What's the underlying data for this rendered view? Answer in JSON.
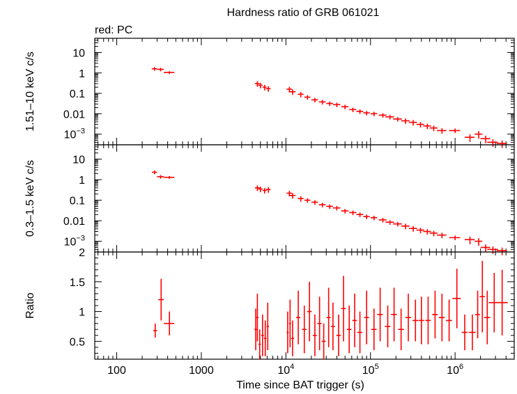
{
  "title": "Hardness ratio of GRB 061021",
  "subtitle": "red: PC",
  "colors": {
    "series": "#ff0000",
    "axes": "#000000"
  },
  "chart_data": [
    {
      "type": "scatter",
      "panel": "hard",
      "ylabel": "1.51–10 keV c/s",
      "yscale": "log",
      "ylim": [
        0.0003,
        50
      ],
      "ytick_labels": [
        "10",
        "1",
        "0.1",
        "0.01",
        "10^-3"
      ],
      "xscale": "log",
      "xlim": [
        55,
        5000000
      ],
      "grid": false,
      "series": [
        {
          "x": [
            280,
            330,
            420,
            4600,
            5000,
            5600,
            6200,
            11000,
            12000,
            15000,
            18000,
            22000,
            27000,
            33000,
            40000,
            50000,
            62000,
            75000,
            90000,
            110000,
            140000,
            170000,
            210000,
            260000,
            320000,
            390000,
            470000,
            560000,
            700000,
            1000000,
            1500000,
            1900000,
            2300000,
            2800000,
            3600000
          ],
          "xerr": [
            20,
            30,
            60,
            300,
            300,
            300,
            400,
            800,
            1000,
            1200,
            1500,
            2000,
            2500,
            3000,
            4000,
            5000,
            6000,
            7000,
            8000,
            10000,
            15000,
            20000,
            25000,
            30000,
            35000,
            40000,
            50000,
            60000,
            90000,
            150000,
            200000,
            200000,
            300000,
            400000,
            500000
          ],
          "y": [
            1.6,
            1.5,
            1.05,
            0.3,
            0.25,
            0.2,
            0.17,
            0.16,
            0.12,
            0.09,
            0.065,
            0.048,
            0.038,
            0.032,
            0.028,
            0.022,
            0.016,
            0.013,
            0.011,
            0.01,
            0.0085,
            0.007,
            0.0055,
            0.0045,
            0.0038,
            0.003,
            0.0025,
            0.002,
            0.0015,
            0.0015,
            0.0007,
            0.001,
            0.0006,
            0.0004,
            0.00035
          ],
          "yerr_rel": [
            0.2,
            0.2,
            0.15,
            0.3,
            0.3,
            0.3,
            0.3,
            0.3,
            0.3,
            0.3,
            0.25,
            0.25,
            0.25,
            0.25,
            0.25,
            0.25,
            0.25,
            0.25,
            0.25,
            0.25,
            0.25,
            0.25,
            0.25,
            0.3,
            0.3,
            0.3,
            0.3,
            0.3,
            0.3,
            0.25,
            0.4,
            0.4,
            0.4,
            0.4,
            0.4
          ]
        }
      ]
    },
    {
      "type": "scatter",
      "panel": "soft",
      "ylabel": "0.3–1.5 keV c/s",
      "yscale": "log",
      "ylim": [
        0.0003,
        50
      ],
      "ytick_labels": [
        "10",
        "1",
        "0.1",
        "0.01",
        "10^-3"
      ],
      "xscale": "log",
      "xlim": [
        55,
        5000000
      ],
      "grid": false,
      "series": [
        {
          "x": [
            280,
            330,
            420,
            4600,
            5000,
            5600,
            6200,
            11000,
            12000,
            15000,
            18000,
            22000,
            27000,
            33000,
            40000,
            50000,
            62000,
            75000,
            90000,
            110000,
            140000,
            170000,
            210000,
            260000,
            320000,
            390000,
            470000,
            560000,
            700000,
            1000000,
            1500000,
            1900000,
            2300000,
            2800000,
            3600000
          ],
          "xerr": [
            20,
            30,
            60,
            300,
            300,
            300,
            400,
            800,
            1000,
            1200,
            1500,
            2000,
            2500,
            3000,
            4000,
            5000,
            6000,
            7000,
            8000,
            10000,
            15000,
            20000,
            25000,
            30000,
            35000,
            40000,
            50000,
            60000,
            90000,
            150000,
            200000,
            200000,
            300000,
            400000,
            500000
          ],
          "y": [
            2.3,
            1.4,
            1.3,
            0.4,
            0.35,
            0.3,
            0.33,
            0.22,
            0.17,
            0.12,
            0.1,
            0.08,
            0.06,
            0.05,
            0.042,
            0.03,
            0.025,
            0.02,
            0.016,
            0.014,
            0.011,
            0.0085,
            0.007,
            0.0055,
            0.0042,
            0.0035,
            0.003,
            0.0025,
            0.002,
            0.0015,
            0.0012,
            0.001,
            0.0005,
            0.0004,
            0.00035
          ],
          "yerr_rel": [
            0.2,
            0.2,
            0.15,
            0.3,
            0.3,
            0.3,
            0.3,
            0.3,
            0.3,
            0.3,
            0.25,
            0.25,
            0.25,
            0.25,
            0.25,
            0.25,
            0.25,
            0.25,
            0.25,
            0.25,
            0.25,
            0.25,
            0.25,
            0.3,
            0.3,
            0.3,
            0.3,
            0.3,
            0.3,
            0.25,
            0.4,
            0.4,
            0.4,
            0.4,
            0.4
          ]
        }
      ]
    },
    {
      "type": "scatter",
      "panel": "ratio",
      "ylabel": "Ratio",
      "yscale": "linear",
      "ylim": [
        0.2,
        2.0
      ],
      "ytick_labels": [
        "2",
        "1.5",
        "1",
        "0.5"
      ],
      "xlabel": "Time since BAT trigger (s)",
      "xscale": "log",
      "xlim": [
        55,
        5000000
      ],
      "xtick_labels": [
        "100",
        "1000",
        "10^4",
        "10^5",
        "10^6"
      ],
      "grid": false,
      "series": [
        {
          "x": [
            285,
            335,
            420,
            4400,
            4600,
            4900,
            5300,
            5700,
            6100,
            10500,
            11200,
            12000,
            14000,
            16500,
            19000,
            22000,
            25000,
            28000,
            32000,
            36000,
            42000,
            48000,
            56000,
            65000,
            75000,
            90000,
            110000,
            130000,
            160000,
            190000,
            230000,
            280000,
            340000,
            400000,
            480000,
            580000,
            700000,
            850000,
            1050000,
            1300000,
            1600000,
            1850000,
            2100000,
            2400000,
            2900000,
            3600000
          ],
          "xerr": [
            15,
            25,
            60,
            150,
            150,
            150,
            200,
            200,
            200,
            300,
            300,
            500,
            800,
            1000,
            1200,
            1200,
            1400,
            1500,
            1800,
            2000,
            2500,
            3000,
            3500,
            4000,
            5000,
            6000,
            8000,
            10000,
            12000,
            15000,
            18000,
            22000,
            26000,
            30000,
            35000,
            45000,
            55000,
            70000,
            120000,
            100000,
            150000,
            120000,
            150000,
            200000,
            400000,
            600000
          ],
          "y": [
            0.68,
            1.2,
            0.8,
            0.7,
            0.9,
            0.45,
            0.6,
            0.55,
            0.75,
            0.65,
            0.8,
            0.55,
            0.9,
            0.7,
            1.0,
            0.6,
            0.8,
            0.5,
            0.9,
            0.75,
            0.6,
            1.05,
            0.7,
            0.85,
            0.65,
            0.9,
            0.7,
            0.95,
            0.75,
            0.95,
            0.7,
            0.9,
            0.85,
            0.85,
            0.85,
            0.95,
            0.9,
            0.85,
            1.22,
            0.65,
            0.65,
            0.95,
            1.25,
            0.9,
            1.15,
            1.15
          ],
          "yerr": [
            0.12,
            0.35,
            0.2,
            0.35,
            0.4,
            0.25,
            0.35,
            0.3,
            0.4,
            0.35,
            0.4,
            0.3,
            0.45,
            0.4,
            0.5,
            0.35,
            0.45,
            0.3,
            0.5,
            0.4,
            0.35,
            0.55,
            0.4,
            0.45,
            0.35,
            0.45,
            0.35,
            0.45,
            0.35,
            0.45,
            0.35,
            0.4,
            0.35,
            0.4,
            0.4,
            0.4,
            0.4,
            0.35,
            0.5,
            0.3,
            0.3,
            0.4,
            0.6,
            0.45,
            0.5,
            0.55
          ]
        }
      ]
    }
  ]
}
